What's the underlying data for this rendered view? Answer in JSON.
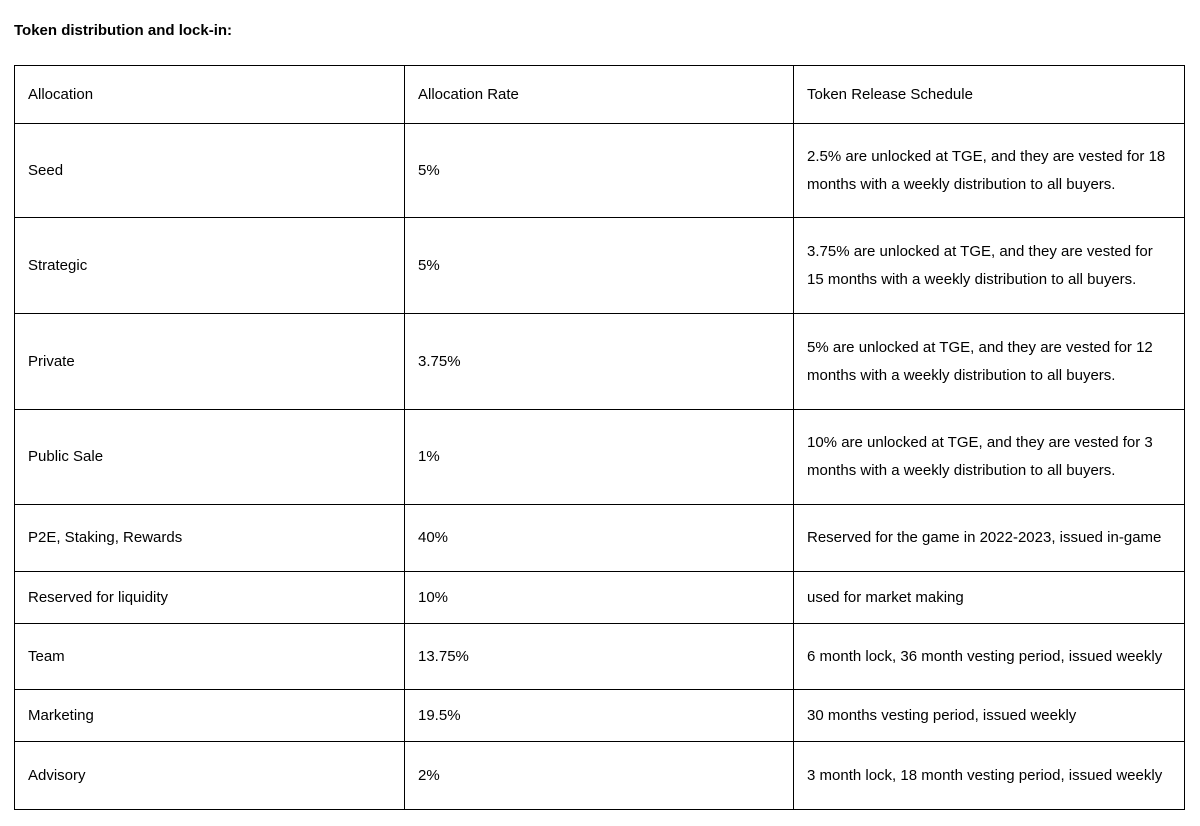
{
  "page": {
    "title": "Token distribution and lock-in:"
  },
  "table": {
    "columns": {
      "allocation": "Allocation",
      "rate": "Allocation Rate",
      "schedule": "Token Release Schedule"
    },
    "rows": [
      {
        "allocation": "Seed",
        "rate": "5%",
        "schedule": "2.5% are unlocked at TGE, and they are vested for 18 months with a weekly distribution to all buyers."
      },
      {
        "allocation": "Strategic",
        "rate": "5%",
        "schedule": "3.75% are unlocked at TGE, and they are vested for 15 months with a weekly distribution to all buyers."
      },
      {
        "allocation": "Private",
        "rate": "3.75%",
        "schedule": "5% are unlocked at TGE, and they are vested for 12 months with a weekly distribution to all buyers."
      },
      {
        "allocation": "Public Sale",
        "rate": "1%",
        "schedule": "10% are unlocked at TGE, and they are vested for 3 months with a weekly distribution to all buyers."
      },
      {
        "allocation": "P2E, Staking, Rewards",
        "rate": "40%",
        "schedule": "Reserved for the game in 2022-2023, issued in-game"
      },
      {
        "allocation": "Reserved for liquidity",
        "rate": "10%",
        "schedule": "used for market making"
      },
      {
        "allocation": "Team",
        "rate": "13.75%",
        "schedule": "6 month lock, 36 month vesting period, issued weekly"
      },
      {
        "allocation": "Marketing",
        "rate": "19.5%",
        "schedule": "30 months vesting period, issued weekly"
      },
      {
        "allocation": "Advisory",
        "rate": "2%",
        "schedule": "3 month lock, 18 month vesting period, issued weekly"
      }
    ]
  }
}
